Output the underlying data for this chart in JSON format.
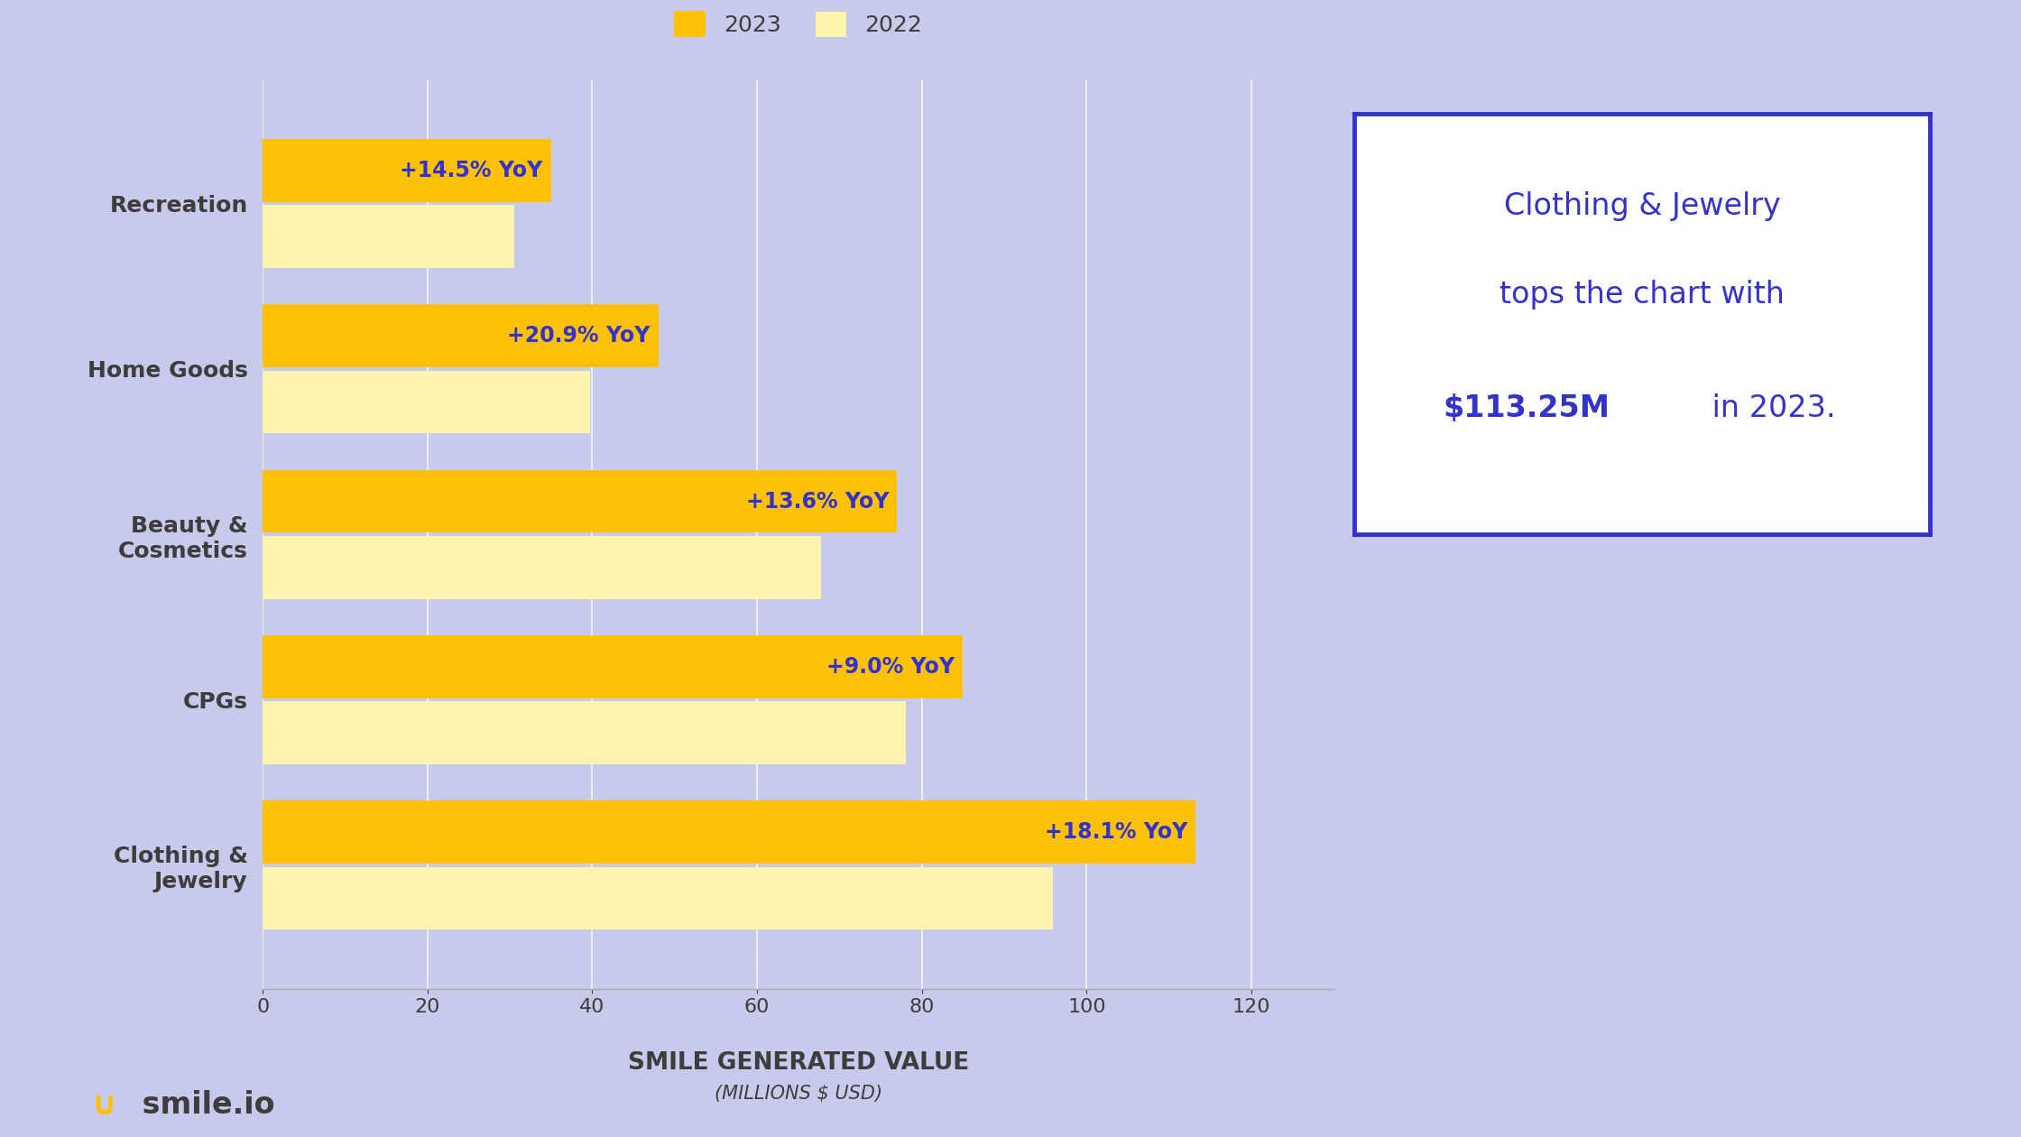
{
  "categories": [
    "Clothing &\nJewelry",
    "CPGs",
    "Beauty &\nCosmetics",
    "Home Goods",
    "Recreation"
  ],
  "values_2023": [
    113.25,
    85.0,
    77.0,
    48.0,
    35.0
  ],
  "values_2022": [
    95.9,
    78.0,
    67.78,
    39.7,
    30.57
  ],
  "yoy_labels": [
    "+18.1% YoY",
    "+9.0% YoY",
    "+13.6% YoY",
    "+20.9% YoY",
    "+14.5% YoY"
  ],
  "color_2023": "#FFC107",
  "color_2022": "#FFF3B0",
  "background_color": "#C8CAEB",
  "bar_height": 0.38,
  "xlim": [
    0,
    130
  ],
  "xticks": [
    0,
    20,
    40,
    60,
    80,
    100,
    120
  ],
  "xlabel_main": "SMILE GENERATED VALUE",
  "xlabel_sub": "(MILLIONS $ USD)",
  "legend_2023": "2023",
  "legend_2022": "2022",
  "callout_line1": "Clothing & Jewelry",
  "callout_line2": "tops the chart with",
  "callout_bold": "$113.25M",
  "callout_normal": " in 2023.",
  "callout_border_color": "#3333CC",
  "callout_text_color": "#3333CC",
  "yoy_color": "#3333CC",
  "label_color": "#3D3D3D",
  "axis_color": "#3D3D3D",
  "smile_icon_color": "#FFC107",
  "smile_text_color": "#3D3D3D",
  "grid_color": "#FFFFFF",
  "yoy_fontsize": 17,
  "callout_fontsize": 24,
  "legend_fontsize": 18,
  "tick_fontsize": 16,
  "ylabel_fontsize": 18,
  "xlabel_fontsize": 19,
  "xlabel_sub_fontsize": 15
}
